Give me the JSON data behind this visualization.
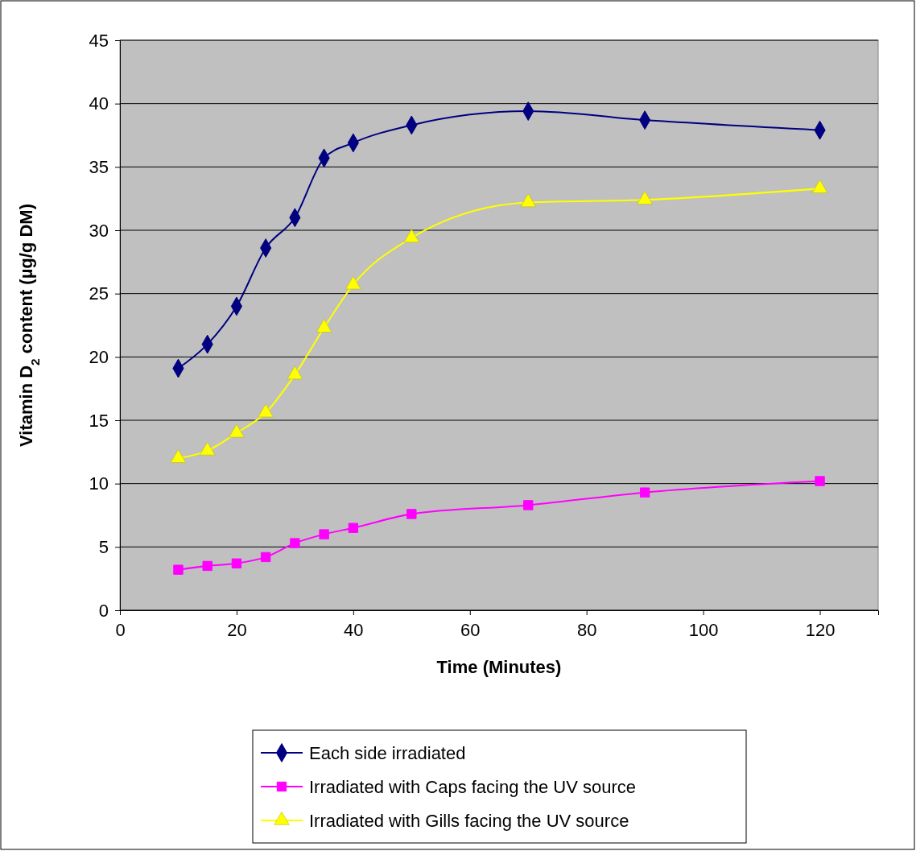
{
  "chart_data": {
    "type": "line",
    "xlabel": "Time (Minutes)",
    "ylabel": "Vitamin D$_{2}$ content (µg/g DM)",
    "xlim": [
      0,
      130
    ],
    "xticks": [
      0,
      20,
      40,
      60,
      80,
      100,
      120
    ],
    "ylim": [
      0,
      45
    ],
    "yticks": [
      0,
      5,
      10,
      15,
      20,
      25,
      30,
      35,
      40,
      45
    ],
    "grid": "y",
    "legend": "bottom",
    "x": [
      10,
      15,
      20,
      25,
      30,
      35,
      40,
      50,
      70,
      90,
      120
    ],
    "series": [
      {
        "name": "Each side irradiated",
        "color": "#000080",
        "marker": "diamond",
        "values": [
          19.1,
          21.0,
          24.0,
          28.6,
          31.0,
          35.7,
          36.9,
          38.3,
          39.4,
          38.7,
          37.9
        ]
      },
      {
        "name": "Irradiated with Caps facing the UV source",
        "color": "#ff00ff",
        "marker": "square",
        "values": [
          3.2,
          3.5,
          3.7,
          4.2,
          5.3,
          6.0,
          6.5,
          7.6,
          8.3,
          9.3,
          10.2
        ]
      },
      {
        "name": "Irradiated with Gills facing the UV source",
        "color": "#ffff00",
        "marker": "triangle",
        "values": [
          12.0,
          12.6,
          14.0,
          15.6,
          18.6,
          22.3,
          25.7,
          29.4,
          32.2,
          32.4,
          33.3
        ]
      }
    ]
  }
}
